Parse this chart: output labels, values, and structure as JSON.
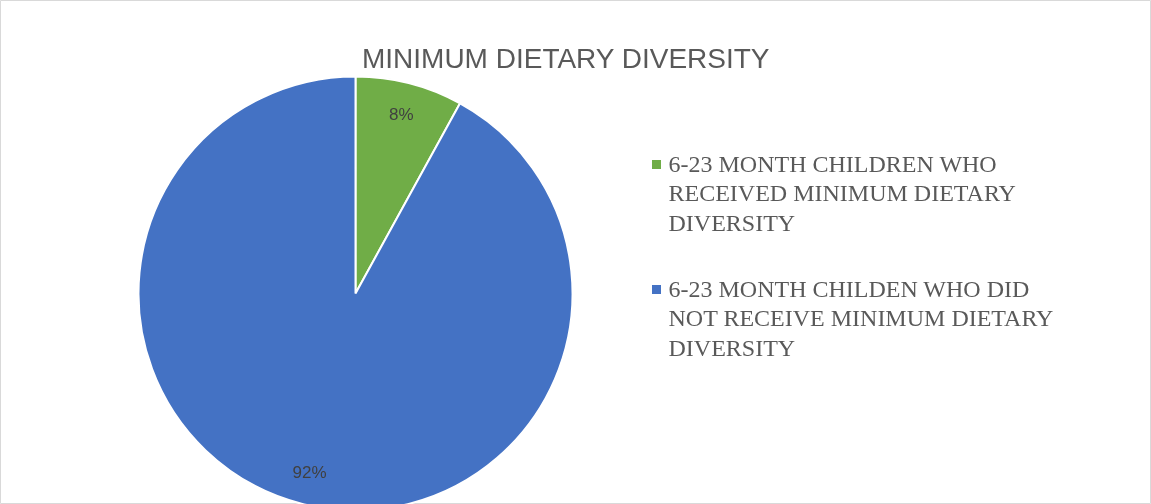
{
  "chart_data": {
    "type": "pie",
    "title": "MINIMUM DIETARY DIVERSITY",
    "categories": [
      "6-23 MONTH CHILDREN WHO RECEIVED MINIMUM DIETARY DIVERSITY",
      "6-23 MONTH CHILDEN WHO DID NOT RECEIVE MINIMUM DIETARY DIVERSITY"
    ],
    "values": [
      8,
      92
    ],
    "colors": [
      "#70ad47",
      "#4472c4"
    ],
    "value_labels": [
      "8%",
      "92%"
    ],
    "legend": "right"
  }
}
